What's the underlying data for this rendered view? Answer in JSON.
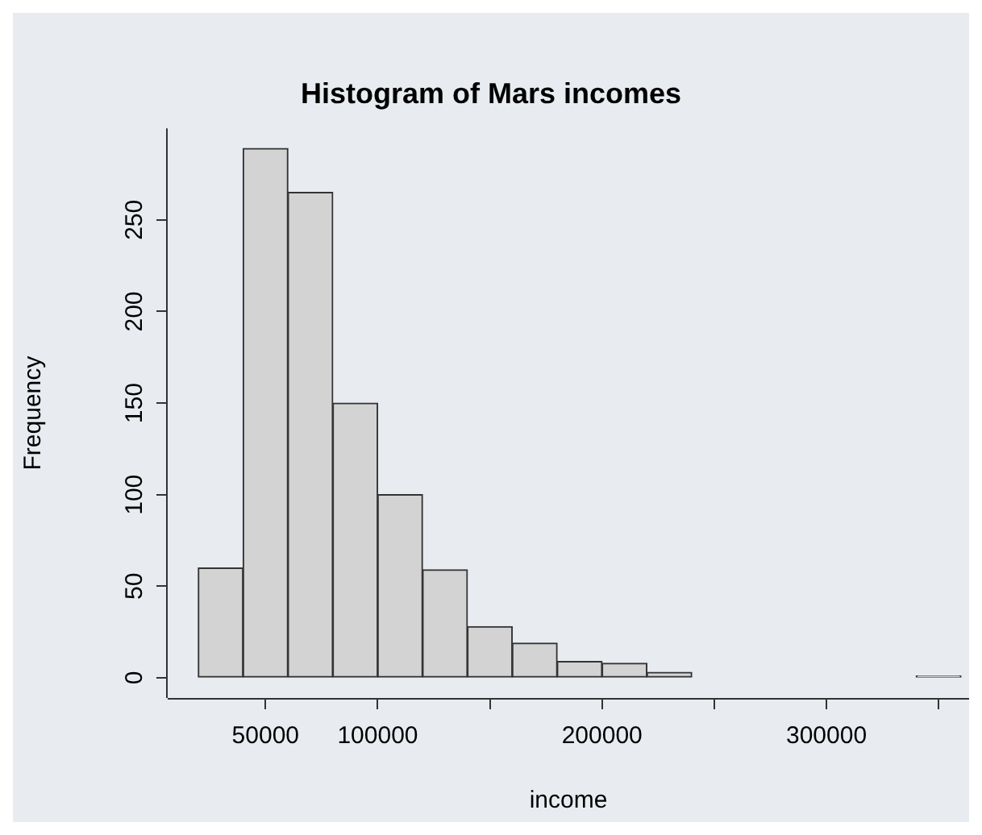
{
  "chart_data": {
    "type": "histogram",
    "title": "Histogram of Mars incomes",
    "xlabel": "income",
    "ylabel": "Frequency",
    "bins": [
      20000,
      40000,
      60000,
      80000,
      100000,
      120000,
      140000,
      160000,
      180000,
      200000,
      220000,
      240000,
      260000,
      280000,
      300000,
      320000,
      340000,
      360000
    ],
    "values": [
      60,
      289,
      265,
      150,
      100,
      59,
      28,
      19,
      9,
      8,
      3,
      0,
      0,
      0,
      0,
      0,
      1
    ],
    "color": "#d3d3d3",
    "xlim": [
      6400,
      363600
    ],
    "ylim": [
      -11,
      300
    ],
    "xticks": [
      50000,
      100000,
      {
        "value": 150000,
        "label": null
      },
      200000,
      {
        "value": 250000,
        "label": null
      },
      300000,
      {
        "value": 350000,
        "label": null
      }
    ],
    "yticks": [
      0,
      50,
      100,
      150,
      200,
      250
    ],
    "grid": false
  }
}
